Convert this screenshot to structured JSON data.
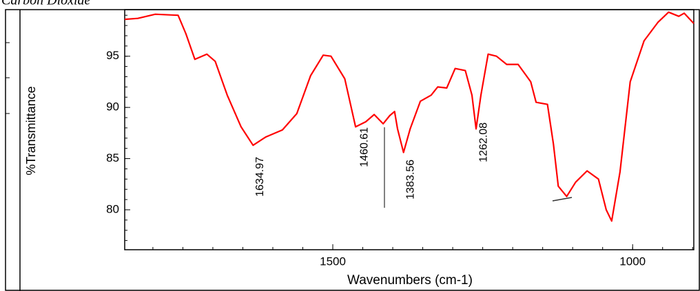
{
  "chart_data": {
    "type": "line",
    "title": "Carbon Dioxide",
    "x_label": "Wavenumbers (cm-1)",
    "y_label": "%Transmittance",
    "xlim": [
      1847,
      898
    ],
    "ylim": [
      76.1,
      99.55
    ],
    "xticks": [
      1500,
      1000
    ],
    "yticks": [
      95,
      90,
      85,
      80
    ],
    "series": [
      {
        "name": "Carbon Dioxide",
        "color": "#ff0000",
        "x": [
          1847,
          1825,
          1796,
          1758,
          1745,
          1730,
          1710,
          1696,
          1676,
          1653,
          1633,
          1612,
          1584,
          1560,
          1537,
          1516,
          1503,
          1480,
          1462,
          1445,
          1431,
          1416,
          1405,
          1397,
          1392,
          1382,
          1371,
          1354,
          1336,
          1325,
          1310,
          1296,
          1279,
          1268,
          1261,
          1253,
          1241,
          1227,
          1210,
          1191,
          1170,
          1161,
          1142,
          1132,
          1124,
          1110,
          1095,
          1076,
          1057,
          1044,
          1035,
          1021,
          1004,
          981,
          958,
          940,
          923,
          914,
          898
        ],
        "values": [
          98.6,
          98.7,
          99.1,
          99.0,
          97.2,
          94.7,
          95.2,
          94.5,
          91.2,
          88.1,
          86.3,
          87.1,
          87.8,
          89.4,
          93.1,
          95.1,
          95.0,
          92.8,
          88.1,
          88.6,
          89.3,
          88.4,
          89.2,
          89.6,
          87.9,
          85.6,
          87.9,
          90.6,
          91.2,
          92.0,
          91.9,
          93.8,
          93.6,
          91.2,
          87.9,
          91.2,
          95.2,
          95.0,
          94.2,
          94.2,
          92.5,
          90.5,
          90.3,
          86.4,
          82.3,
          81.3,
          82.7,
          83.8,
          83.0,
          80.0,
          78.9,
          83.7,
          92.5,
          96.5,
          98.3,
          99.3,
          98.9,
          99.2,
          98.2
        ]
      }
    ],
    "annotations": [
      "1634.97",
      "1460.61",
      "1383.56",
      "1262.08"
    ]
  }
}
